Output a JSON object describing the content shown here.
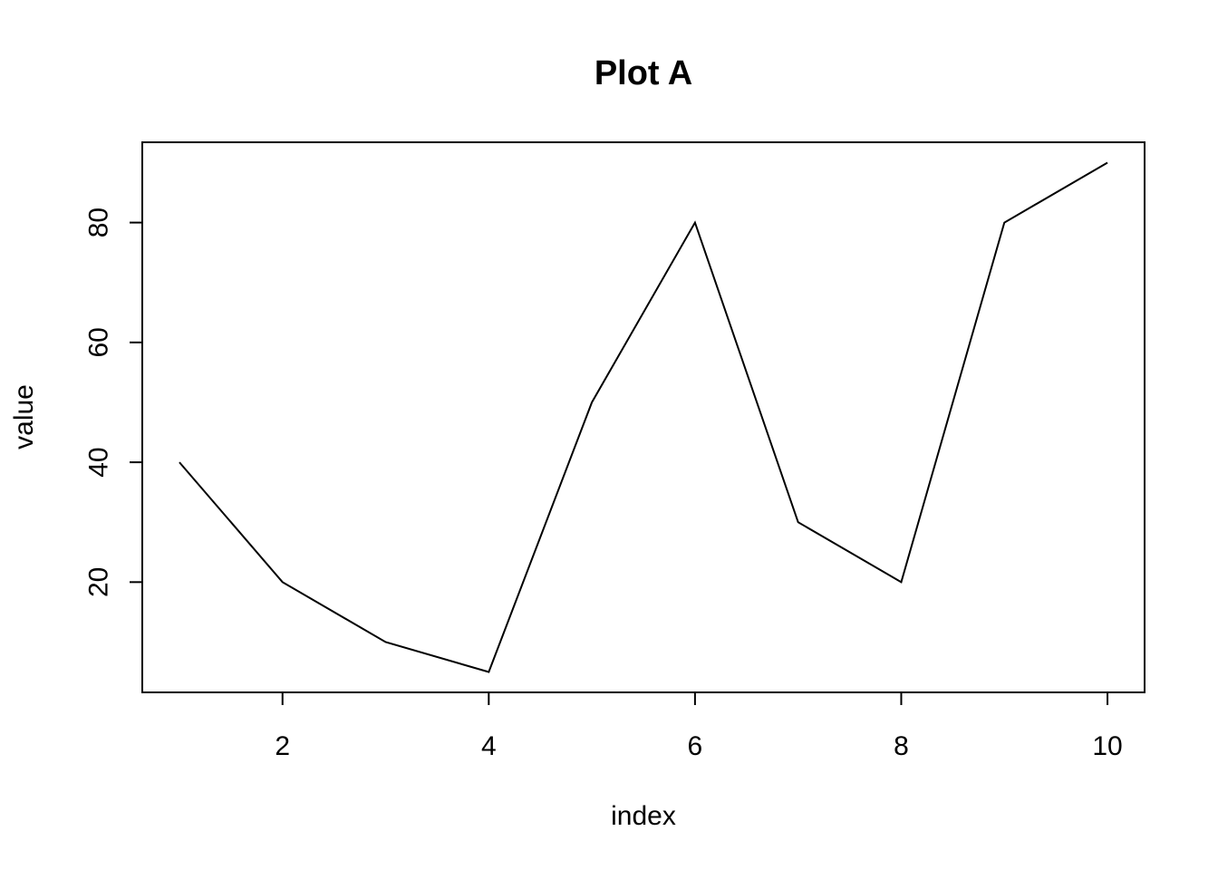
{
  "chart_data": {
    "type": "line",
    "title": "Plot A",
    "xlabel": "index",
    "ylabel": "value",
    "x": [
      1,
      2,
      3,
      4,
      5,
      6,
      7,
      8,
      9,
      10
    ],
    "series": [
      {
        "values": [
          40,
          20,
          10,
          5,
          50,
          80,
          30,
          20,
          80,
          90
        ]
      }
    ],
    "xlim": [
      0.64,
      10.36
    ],
    "ylim": [
      1.6,
      93.4
    ],
    "xticks": [
      2,
      4,
      6,
      8,
      10
    ],
    "yticks": [
      20,
      40,
      60,
      80
    ],
    "grid": false,
    "colors": {
      "line": "#000000",
      "frame": "#000000",
      "background": "#ffffff"
    }
  }
}
